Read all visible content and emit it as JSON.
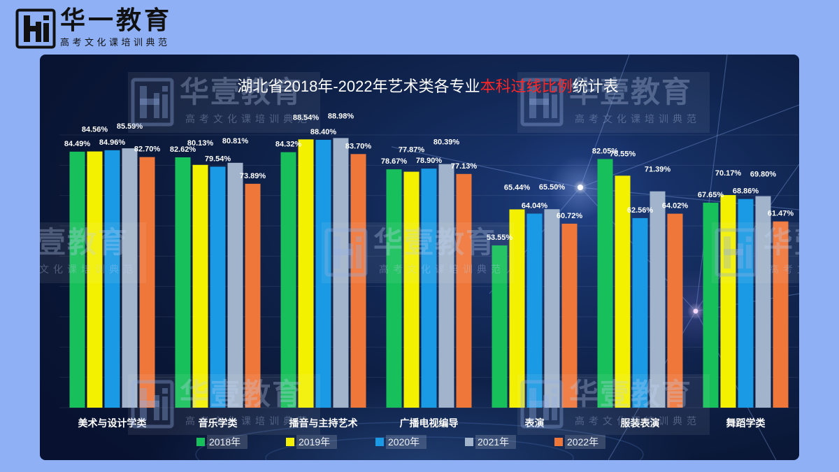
{
  "logo": {
    "brand": "华一教育",
    "tagline": "高考文化课培训典范"
  },
  "watermark": {
    "brand": "华壹教育",
    "tagline": "高考文化课培训典范"
  },
  "chart_data": {
    "type": "bar",
    "title": {
      "before": "湖北省2018年-2022年艺术类各专业",
      "highlight": "本科过线比例",
      "after": "统计表",
      "highlight_color": "#ff2626"
    },
    "categories": [
      "美术与设计学类",
      "音乐学类",
      "播音与主持艺术",
      "广播电视编导",
      "表演",
      "服装表演",
      "舞蹈学类"
    ],
    "series": [
      {
        "name": "2018年",
        "color": "#17c05a",
        "values": [
          84.49,
          82.62,
          84.32,
          78.67,
          53.55,
          82.05,
          67.65
        ]
      },
      {
        "name": "2019年",
        "color": "#f3f000",
        "values": [
          84.56,
          80.13,
          88.54,
          77.87,
          65.44,
          76.55,
          70.17
        ]
      },
      {
        "name": "2020年",
        "color": "#1a9ae4",
        "values": [
          84.96,
          79.54,
          88.4,
          78.9,
          64.04,
          62.56,
          68.86
        ]
      },
      {
        "name": "2021年",
        "color": "#a2b4cb",
        "values": [
          85.59,
          80.81,
          88.98,
          80.39,
          65.5,
          71.39,
          69.8
        ]
      },
      {
        "name": "2022年",
        "color": "#ef773a",
        "values": [
          82.7,
          73.89,
          83.7,
          77.13,
          60.72,
          64.02,
          61.47
        ]
      }
    ],
    "value_format": {
      "decimals": 2,
      "suffix": "%"
    },
    "ylim": [
      0,
      90
    ],
    "grid": true,
    "legend": "bottom",
    "data_labels": true
  }
}
